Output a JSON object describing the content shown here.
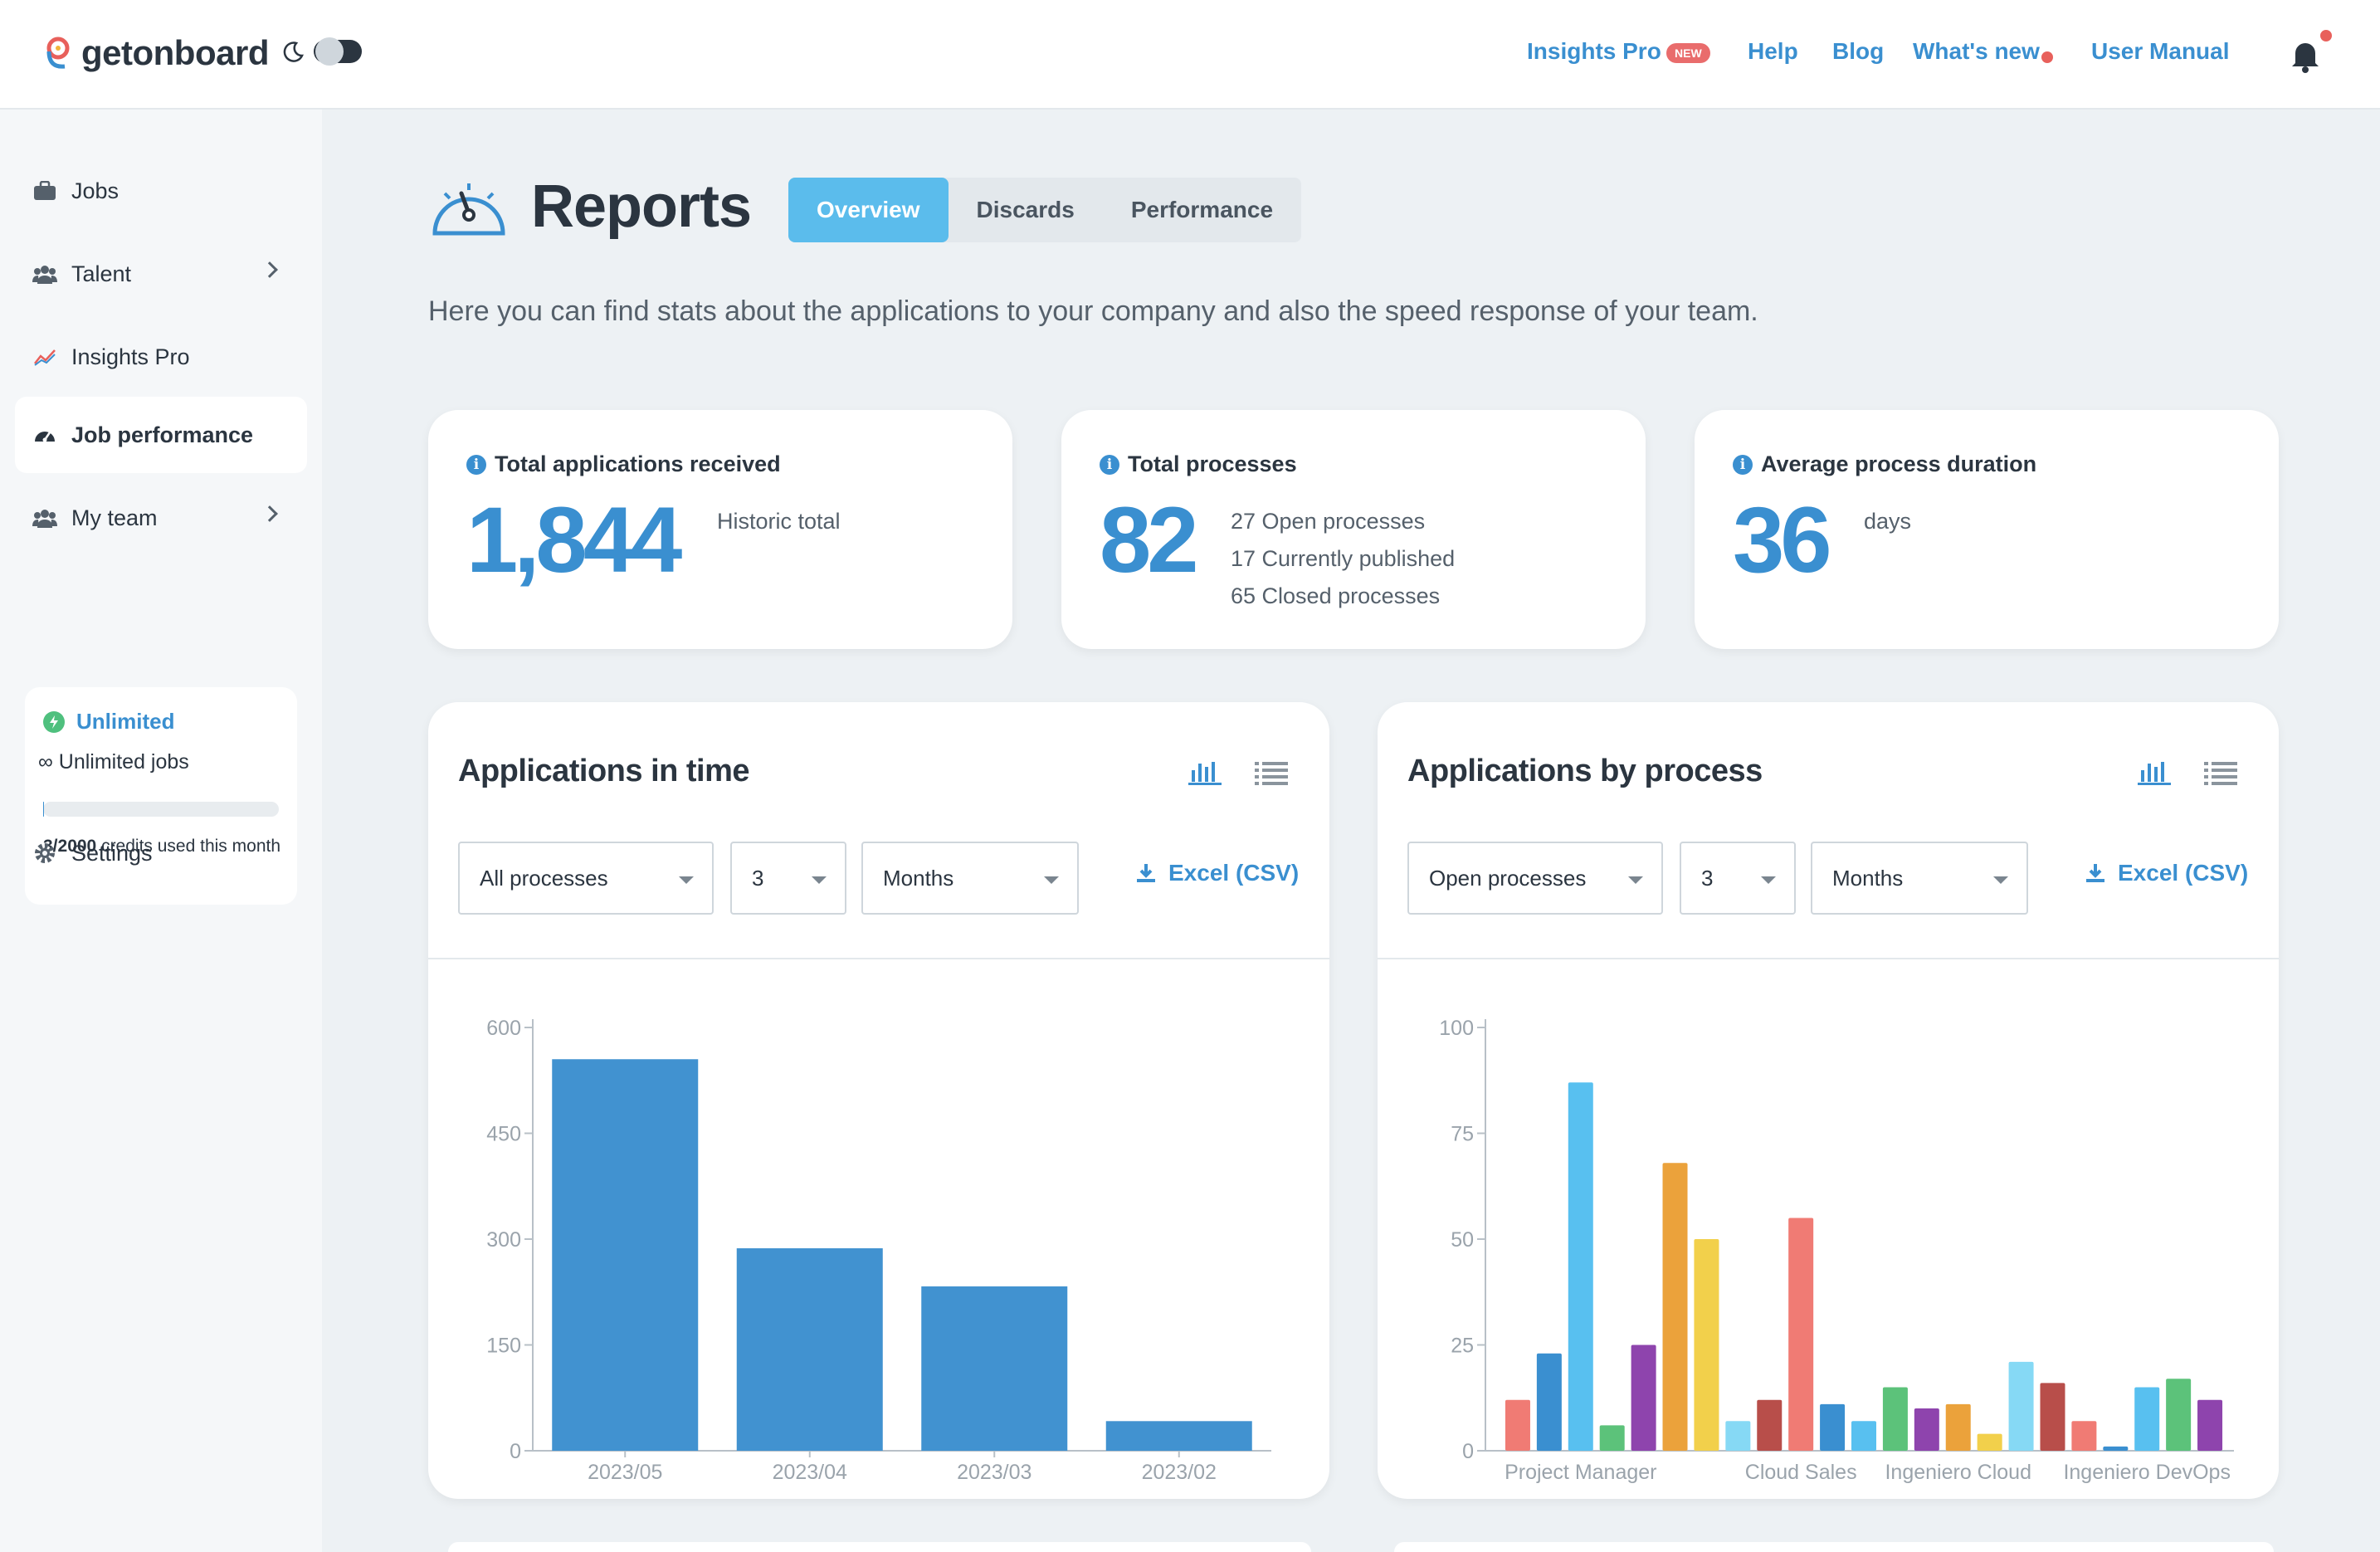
{
  "brand": {
    "name": "getonboard"
  },
  "topnav": {
    "insights": "Insights Pro",
    "new_badge": "NEW",
    "help": "Help",
    "blog": "Blog",
    "whats_new": "What's new",
    "manual": "User Manual"
  },
  "sidebar": {
    "items": [
      {
        "label": "Jobs",
        "icon": "briefcase-icon"
      },
      {
        "label": "Talent",
        "icon": "users-icon"
      },
      {
        "label": "Insights Pro",
        "icon": "trend-icon"
      },
      {
        "label": "Job performance",
        "icon": "gauge-icon"
      },
      {
        "label": "My team",
        "icon": "users-icon"
      },
      {
        "label": "Settings",
        "icon": "gear-icon"
      }
    ],
    "plan": {
      "title": "Unlimited",
      "subtitle": "∞ Unlimited jobs",
      "credits_strong": "3/2000",
      "credits_rest": " credits used this month",
      "credits_used_fraction": 0.0015
    }
  },
  "page": {
    "title": "Reports",
    "tabs": [
      "Overview",
      "Discards",
      "Performance"
    ],
    "active_tab": "Overview",
    "intro": "Here you can find stats about the applications to your company and also the speed response of your team."
  },
  "stats": {
    "applications": {
      "label": "Total applications received",
      "value": "1,844",
      "note": "Historic total"
    },
    "processes": {
      "label": "Total processes",
      "value": "82",
      "lines": [
        "27 Open processes",
        "17 Currently published",
        "65 Closed processes"
      ]
    },
    "duration": {
      "label": "Average process duration",
      "value": "36",
      "note": "days"
    }
  },
  "panels": {
    "left": {
      "title": "Applications in time",
      "filter_process": "All processes",
      "filter_count": "3",
      "filter_unit": "Months",
      "export": "Excel (CSV)"
    },
    "right": {
      "title": "Applications by process",
      "filter_process": "Open processes",
      "filter_count": "3",
      "filter_unit": "Months",
      "export": "Excel (CSV)"
    }
  },
  "colors": {
    "accent": "#3a8fd0",
    "tab_active": "#5bbcec",
    "bar": "#4192d0",
    "notify": "#e8605b"
  },
  "chart_data": [
    {
      "type": "bar",
      "categories": [
        "2023/05",
        "2023/04",
        "2023/03",
        "2023/02"
      ],
      "values": [
        555,
        287,
        233,
        42
      ],
      "ylim": [
        0,
        600
      ],
      "yticks": [
        0,
        150,
        300,
        450,
        600
      ],
      "color": "#4192d0",
      "grid": false
    },
    {
      "type": "bar",
      "tick_labels": [
        "Project Manager",
        "Cloud Sales",
        "Ingeniero Cloud",
        "Ingeniero DevOps"
      ],
      "values": [
        12,
        23,
        87,
        6,
        25,
        68,
        50,
        7,
        12,
        55,
        11,
        7,
        15,
        10,
        11,
        4,
        21,
        16,
        7,
        1,
        15,
        17,
        12
      ],
      "colors": [
        "#f07b74",
        "#3a8fd0",
        "#58c0f0",
        "#5cc27a",
        "#8e44ad",
        "#eba23b",
        "#f2d04b",
        "#86d9f5",
        "#b84e4a",
        "#f07b74",
        "#3a8fd0",
        "#58c0f0",
        "#5cc27a",
        "#8e44ad",
        "#eba23b",
        "#f2d04b",
        "#86d9f5",
        "#b84e4a",
        "#f07b74",
        "#3a8fd0",
        "#58c0f0",
        "#5cc27a",
        "#8e44ad"
      ],
      "ylim": [
        0,
        100
      ],
      "yticks": [
        0,
        25,
        50,
        75,
        100
      ],
      "grid": false
    }
  ]
}
